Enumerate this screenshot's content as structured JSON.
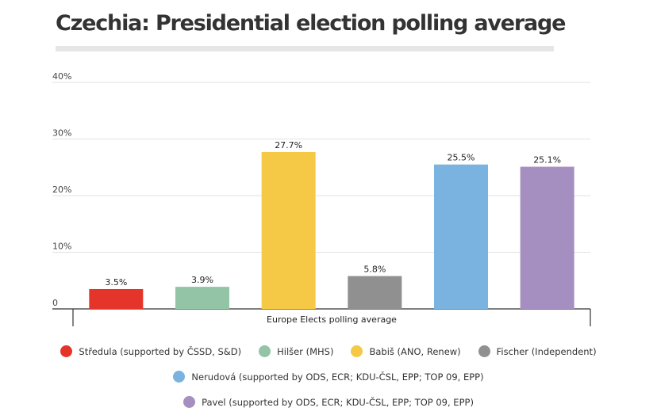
{
  "title": "Czechia: Presidential election polling average",
  "chart_data": {
    "type": "bar",
    "title": "Czechia: Presidential election polling average",
    "xlabel": "Europe Elects polling average",
    "ylabel": "",
    "ylim": [
      0,
      40
    ],
    "yticks": [
      "0",
      "10%",
      "20%",
      "30%",
      "40%"
    ],
    "grid": true,
    "legend_position": "bottom",
    "categories": [
      "Středula",
      "Hilšer",
      "Babiš",
      "Fischer",
      "Nerudová",
      "Pavel"
    ],
    "values": [
      3.5,
      3.9,
      27.7,
      5.8,
      25.5,
      25.1
    ],
    "value_labels": [
      "3.5%",
      "3.9%",
      "27.7%",
      "5.8%",
      "25.5%",
      "25.1%"
    ],
    "colors": [
      "#e5352b",
      "#93c4a6",
      "#f5c945",
      "#909090",
      "#7ab3e0",
      "#a58fc0"
    ],
    "legend": [
      "Středula (supported by ČSSD, S&D)",
      "Hilšer (MHS)",
      "Babiš (ANO, Renew)",
      "Fischer (Independent)",
      "Nerudová (supported by ODS, ECR; KDU-ČSL, EPP; TOP 09, EPP)",
      "Pavel (supported by ODS, ECR; KDU-ČSL, EPP; TOP 09, EPP)"
    ]
  }
}
